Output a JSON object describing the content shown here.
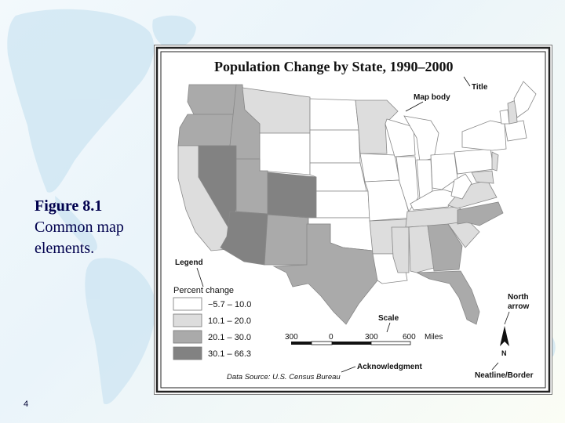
{
  "caption": {
    "figure": "Figure 8.1",
    "text": "Common map elements."
  },
  "page_number": "4",
  "map": {
    "title": "Population Change by State, 1990–2000",
    "legend": {
      "heading": "Legend",
      "subheading": "Percent change",
      "classes": [
        {
          "label": "−5.7 – 10.0",
          "color": "#ffffff"
        },
        {
          "label": "10.1 – 20.0",
          "color": "#dddddd"
        },
        {
          "label": "20.1 – 30.0",
          "color": "#aaaaaa"
        },
        {
          "label": "30.1 – 66.3",
          "color": "#828282"
        }
      ]
    },
    "scale": {
      "label": "Scale",
      "ticks": [
        "300",
        "0",
        "300",
        "600"
      ],
      "unit": "Miles"
    },
    "north_arrow": {
      "label_line1": "North",
      "label_line2": "arrow",
      "letter": "N"
    },
    "source": "Data Source: U.S. Census Bureau",
    "callouts": {
      "title": "Title",
      "map_body": "Map body",
      "acknowledgment": "Acknowledgment",
      "neatline": "Neatline/Border"
    }
  }
}
